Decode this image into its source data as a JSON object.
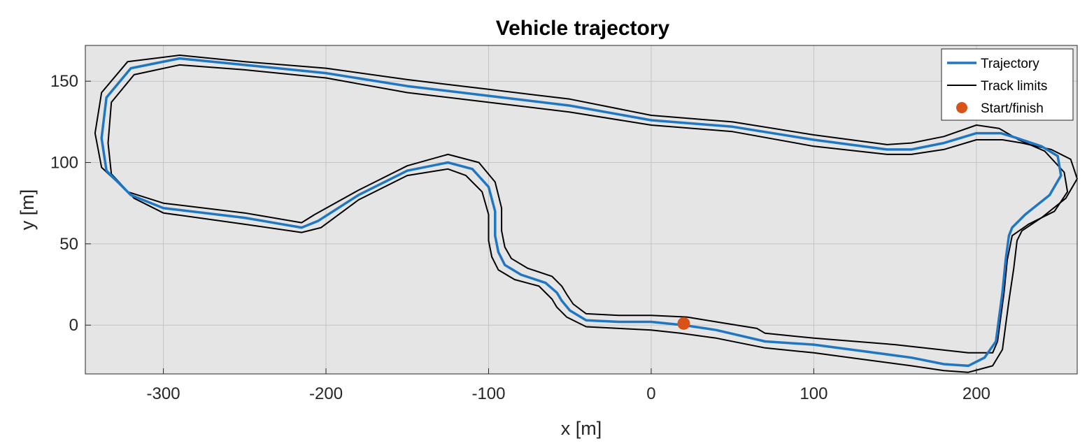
{
  "chart_data": {
    "type": "line",
    "title": "Vehicle trajectory",
    "xlabel": "x [m]",
    "ylabel": "y [m]",
    "xlim": [
      -348,
      262
    ],
    "ylim": [
      -30,
      172
    ],
    "xticks": [
      -300,
      -200,
      -100,
      0,
      100,
      200
    ],
    "yticks": [
      0,
      50,
      100,
      150
    ],
    "grid": true,
    "legend_position": "top-right",
    "legend": [
      "Trajectory",
      "Track limits",
      "Start/finish"
    ],
    "colors": {
      "trajectory": "#1f77c4",
      "track_limits": "#000000",
      "start_finish": "#d95319",
      "axes_background": "#e5e5e5",
      "grid": "#c4c4c4"
    },
    "series": [
      {
        "name": "Trajectory",
        "style": "line",
        "x": [
          20,
          40,
          70,
          100,
          130,
          160,
          180,
          195,
          205,
          212,
          214,
          216,
          218,
          220,
          222,
          230,
          245,
          252,
          250,
          240,
          225,
          215,
          200,
          180,
          160,
          145,
          100,
          50,
          0,
          -50,
          -100,
          -150,
          -200,
          -250,
          -290,
          -320,
          -335,
          -338,
          -335,
          -320,
          -300,
          -250,
          -215,
          -205,
          -180,
          -150,
          -125,
          -110,
          -100,
          -96,
          -96,
          -94,
          -90,
          -80,
          -65,
          -58,
          -55,
          -50,
          -40,
          -20,
          0,
          20
        ],
        "y": [
          0,
          -3,
          -10,
          -12,
          -16,
          -20,
          -24,
          -25,
          -20,
          -10,
          5,
          20,
          40,
          55,
          60,
          68,
          80,
          92,
          104,
          110,
          115,
          118,
          118,
          112,
          108,
          108,
          114,
          122,
          126,
          135,
          141,
          147,
          155,
          160,
          164,
          158,
          140,
          115,
          95,
          80,
          72,
          66,
          60,
          64,
          80,
          95,
          100,
          96,
          85,
          70,
          55,
          45,
          37,
          31,
          26,
          20,
          15,
          9,
          3,
          2,
          2,
          0
        ]
      },
      {
        "name": "Track limits",
        "style": "line",
        "x": [
          22,
          40,
          65,
          70,
          100,
          150,
          195,
          210,
          213,
          215,
          217,
          219,
          222,
          232,
          248,
          256,
          254,
          242,
          226,
          214,
          200,
          180,
          160,
          145,
          100,
          50,
          0,
          -50,
          -100,
          -150,
          -200,
          -250,
          -290,
          -322,
          -338,
          -342,
          -338,
          -322,
          -300,
          -250,
          -215,
          -207,
          -180,
          -150,
          -125,
          -106,
          -96,
          -92,
          -92,
          -90,
          -86,
          -76,
          -61,
          -55,
          -52,
          -48,
          -40,
          -20,
          0,
          22
        ],
        "y": [
          5,
          2,
          -2,
          -5,
          -8,
          -12,
          -17,
          -17,
          -10,
          5,
          20,
          40,
          55,
          62,
          70,
          82,
          94,
          107,
          114,
          121,
          123,
          116,
          112,
          111,
          117,
          125,
          129,
          139,
          145,
          151,
          158,
          162,
          166,
          162,
          143,
          118,
          97,
          82,
          75,
          69,
          63,
          68,
          83,
          98,
          105,
          100,
          88,
          72,
          58,
          48,
          41,
          35,
          30,
          24,
          19,
          13,
          7,
          6,
          6,
          5
        ]
      },
      {
        "name": "Track limits",
        "style": "line",
        "x": [
          18,
          40,
          70,
          100,
          130,
          160,
          180,
          195,
          210,
          216,
          218,
          220,
          223,
          225,
          228,
          240,
          255,
          262,
          258,
          246,
          228,
          216,
          200,
          180,
          160,
          145,
          100,
          50,
          0,
          -50,
          -100,
          -150,
          -200,
          -250,
          -290,
          -318,
          -332,
          -334,
          -332,
          -318,
          -300,
          -250,
          -215,
          -203,
          -180,
          -150,
          -125,
          -114,
          -104,
          -100,
          -100,
          -98,
          -94,
          -84,
          -69,
          -61,
          -58,
          -52,
          -40,
          -20,
          0,
          18
        ],
        "y": [
          -5,
          -8,
          -14,
          -17,
          -21,
          -25,
          -28,
          -29,
          -25,
          -15,
          0,
          15,
          35,
          52,
          58,
          66,
          78,
          90,
          102,
          108,
          112,
          114,
          114,
          108,
          105,
          105,
          110,
          119,
          123,
          131,
          137,
          143,
          152,
          157,
          160,
          154,
          137,
          112,
          93,
          78,
          69,
          62,
          57,
          60,
          77,
          92,
          96,
          92,
          82,
          68,
          52,
          42,
          34,
          28,
          24,
          16,
          11,
          5,
          -1,
          -2,
          -3,
          -5
        ]
      },
      {
        "name": "Start/finish",
        "style": "marker",
        "x": [
          20
        ],
        "y": [
          1
        ]
      }
    ]
  }
}
